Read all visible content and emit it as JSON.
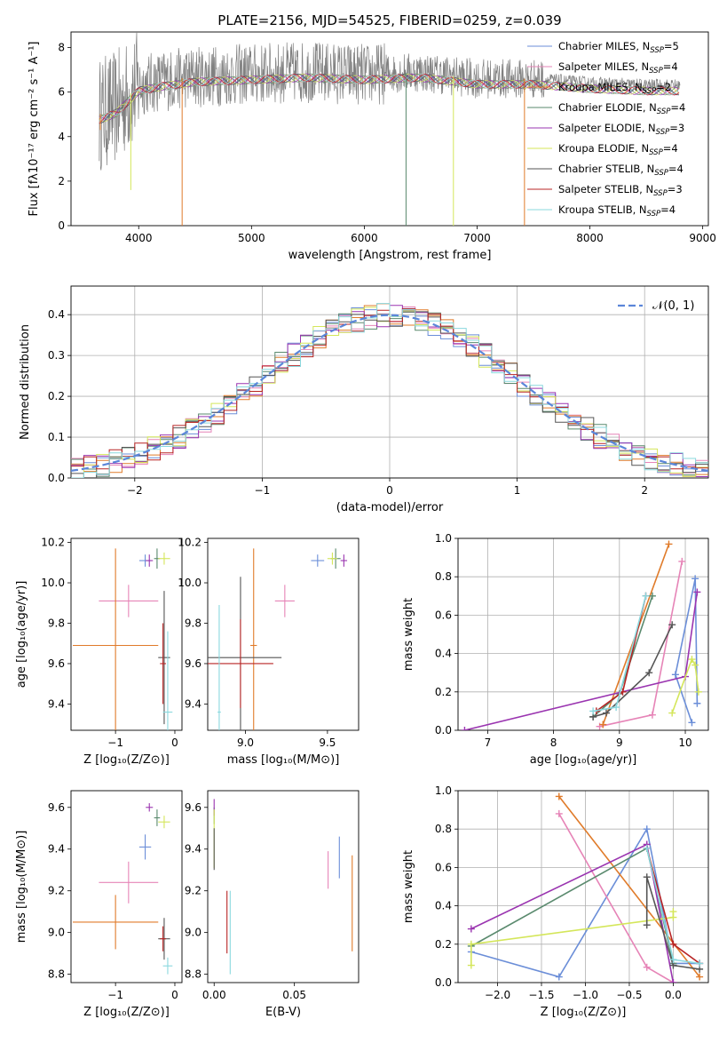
{
  "colors": {
    "chabrier_miles": "#6b8ed8",
    "salpeter_miles": "#e684b7",
    "kroupa_miles": "#e07b2a",
    "chabrier_elodie": "#5a8a6e",
    "salpeter_elodie": "#9a34b0",
    "kroupa_elodie": "#d4e65a",
    "chabrier_stelib": "#555555",
    "salpeter_stelib": "#b82424",
    "kroupa_stelib": "#8ad8de",
    "data": "#808080",
    "gaussian": "#5b86d9",
    "grid": "#b0b0b0"
  },
  "chart_data": [
    {
      "id": "spectrum",
      "type": "line",
      "title": "PLATE=2156, MJD=54525, FIBERID=0259, z=0.039",
      "xlabel": "wavelength [Angstrom, rest frame]",
      "ylabel": "Flux [fλ10⁻¹⁷ erg cm⁻² s⁻¹ A⁻¹]",
      "xlim": [
        3400,
        9050
      ],
      "ylim": [
        0,
        8.7
      ],
      "xticks": [
        "4000",
        "5000",
        "6000",
        "7000",
        "8000",
        "9000"
      ],
      "yticks": [
        "0",
        "2",
        "4",
        "6",
        "8"
      ],
      "grid": false,
      "legend_position": "top-right",
      "legend": [
        {
          "label": "Chabrier MILES, N",
          "sub": "SSP",
          "tail": "=5",
          "key": "chabrier_miles"
        },
        {
          "label": "Salpeter MILES, N",
          "sub": "SSP",
          "tail": "=4",
          "key": "salpeter_miles"
        },
        {
          "label": "Kroupa MILES, N",
          "sub": "SSP",
          "tail": "=2",
          "key": "kroupa_miles"
        },
        {
          "label": "Chabrier ELODIE, N",
          "sub": "SSP",
          "tail": "=4",
          "key": "chabrier_elodie"
        },
        {
          "label": "Salpeter ELODIE, N",
          "sub": "SSP",
          "tail": "=3",
          "key": "salpeter_elodie"
        },
        {
          "label": "Kroupa ELODIE, N",
          "sub": "SSP",
          "tail": "=4",
          "key": "kroupa_elodie"
        },
        {
          "label": "Chabrier STELIB, N",
          "sub": "SSP",
          "tail": "=4",
          "key": "chabrier_stelib"
        },
        {
          "label": "Salpeter STELIB, N",
          "sub": "SSP",
          "tail": "=3",
          "key": "salpeter_stelib"
        },
        {
          "label": "Kroupa STELIB, N",
          "sub": "SSP",
          "tail": "=4",
          "key": "kroupa_stelib"
        }
      ],
      "continuum": [
        [
          3650,
          5.0
        ],
        [
          3800,
          5.3
        ],
        [
          4000,
          6.3
        ],
        [
          4200,
          6.5
        ],
        [
          4500,
          6.7
        ],
        [
          5000,
          6.8
        ],
        [
          5500,
          6.9
        ],
        [
          6000,
          6.8
        ],
        [
          6500,
          6.9
        ],
        [
          7000,
          6.6
        ],
        [
          7500,
          6.6
        ],
        [
          8000,
          6.4
        ],
        [
          8500,
          6.3
        ],
        [
          8800,
          6.3
        ]
      ],
      "dips": [
        {
          "x": 3660,
          "y": 4.3,
          "key": "kroupa_miles"
        },
        {
          "x": 3930,
          "y": 1.6,
          "key": "kroupa_elodie"
        },
        {
          "x": 4385,
          "y": 0.0,
          "key": "kroupa_miles"
        },
        {
          "x": 6370,
          "y": 0.0,
          "key": "chabrier_elodie"
        },
        {
          "x": 6790,
          "y": 0.0,
          "key": "kroupa_elodie"
        },
        {
          "x": 7420,
          "y": 0.0,
          "key": "kroupa_miles"
        }
      ]
    },
    {
      "id": "residuals",
      "type": "line",
      "xlabel": "(data-model)/error",
      "ylabel": "Normed distribution",
      "xlim": [
        -2.5,
        2.5
      ],
      "ylim": [
        0,
        0.47
      ],
      "xticks": [
        "−2",
        "−1",
        "0",
        "1",
        "2"
      ],
      "yticks": [
        "0.0",
        "0.1",
        "0.2",
        "0.3",
        "0.4"
      ],
      "grid": true,
      "legend_position": "top-right",
      "legend": [
        {
          "label": "𝒩(0, 1)",
          "key": "gaussian"
        }
      ],
      "bin_width": 0.1
    },
    {
      "id": "age_vs_Z",
      "type": "scatter",
      "xlabel": "Z [log₁₀(Z/Z⊙)]",
      "ylabel": "age  [log₁₀(age/yr)]",
      "xlim": [
        -1.75,
        0.12
      ],
      "ylim": [
        9.27,
        10.22
      ],
      "xticks": [
        "−1",
        "0"
      ],
      "yticks": [
        "9.4",
        "9.6",
        "9.8",
        "10.0",
        "10.2"
      ],
      "points": [
        {
          "key": "chabrier_miles",
          "x": -0.5,
          "xe": 0.1,
          "y": 10.11,
          "ye": 0.03
        },
        {
          "key": "salpeter_miles",
          "x": -0.78,
          "xe": 0.5,
          "y": 9.91,
          "ye": 0.08
        },
        {
          "key": "kroupa_miles",
          "x": -1.0,
          "xe": 0.72,
          "y": 9.69,
          "ye": 0.48
        },
        {
          "key": "chabrier_elodie",
          "x": -0.3,
          "xe": 0.05,
          "y": 10.12,
          "ye": 0.05
        },
        {
          "key": "salpeter_elodie",
          "x": -0.43,
          "xe": 0.06,
          "y": 10.11,
          "ye": 0.03
        },
        {
          "key": "kroupa_elodie",
          "x": -0.18,
          "xe": 0.1,
          "y": 10.12,
          "ye": 0.03
        },
        {
          "key": "chabrier_stelib",
          "x": -0.18,
          "xe": 0.1,
          "y": 9.63,
          "ye": 0.33
        },
        {
          "key": "salpeter_stelib",
          "x": -0.2,
          "xe": 0.05,
          "y": 9.6,
          "ye": 0.2
        },
        {
          "key": "kroupa_stelib",
          "x": -0.12,
          "xe": 0.08,
          "y": 9.36,
          "ye": 0.4
        }
      ]
    },
    {
      "id": "age_vs_mass",
      "type": "scatter",
      "xlabel": "mass [log₁₀(M/M⊙)]",
      "ylabel": "",
      "xlim": [
        8.77,
        9.69
      ],
      "ylim": [
        9.27,
        10.22
      ],
      "xticks": [
        "9.0",
        "9.5"
      ],
      "yticks": [
        "9.4",
        "9.6",
        "9.8",
        "10.0",
        "10.2"
      ],
      "points": [
        {
          "key": "chabrier_miles",
          "x": 9.44,
          "xe": 0.04,
          "y": 10.11,
          "ye": 0.03
        },
        {
          "key": "salpeter_miles",
          "x": 9.24,
          "xe": 0.06,
          "y": 9.91,
          "ye": 0.08
        },
        {
          "key": "kroupa_miles",
          "x": 9.05,
          "xe": 0.02,
          "y": 9.69,
          "ye": 0.48
        },
        {
          "key": "chabrier_elodie",
          "x": 9.55,
          "xe": 0.03,
          "y": 10.12,
          "ye": 0.05
        },
        {
          "key": "salpeter_elodie",
          "x": 9.6,
          "xe": 0.02,
          "y": 10.11,
          "ye": 0.03
        },
        {
          "key": "kroupa_elodie",
          "x": 9.53,
          "xe": 0.03,
          "y": 10.12,
          "ye": 0.03
        },
        {
          "key": "chabrier_stelib",
          "x": 8.97,
          "xe": 0.25,
          "y": 9.63,
          "ye": 0.4
        },
        {
          "key": "salpeter_stelib",
          "x": 8.97,
          "xe": 0.2,
          "y": 9.6,
          "ye": 0.22
        },
        {
          "key": "kroupa_stelib",
          "x": 8.84,
          "xe": 0.01,
          "y": 9.36,
          "ye": 0.53
        }
      ]
    },
    {
      "id": "weight_vs_age",
      "type": "line",
      "xlabel": "age  [log₁₀(age/yr)]",
      "ylabel": "mass weight",
      "xlim": [
        6.55,
        10.35
      ],
      "ylim": [
        0,
        1.0
      ],
      "xticks": [
        "7",
        "8",
        "9",
        "10"
      ],
      "yticks": [
        "0.0",
        "0.2",
        "0.4",
        "0.6",
        "0.8",
        "1.0"
      ],
      "grid": true,
      "series": [
        {
          "key": "chabrier_miles",
          "x": [
            10.1,
            9.85,
            10.15,
            10.18
          ],
          "y": [
            0.04,
            0.29,
            0.79,
            0.14
          ]
        },
        {
          "key": "salpeter_miles",
          "x": [
            8.7,
            9.5,
            9.95
          ],
          "y": [
            0.02,
            0.08,
            0.88
          ]
        },
        {
          "key": "kroupa_miles",
          "x": [
            8.75,
            9.75
          ],
          "y": [
            0.03,
            0.97
          ]
        },
        {
          "key": "chabrier_elodie",
          "x": [
            8.6,
            9.0,
            9.5
          ],
          "y": [
            0.07,
            0.19,
            0.7
          ]
        },
        {
          "key": "salpeter_elodie",
          "x": [
            6.65,
            10.0,
            10.18
          ],
          "y": [
            0.0,
            0.28,
            0.72
          ]
        },
        {
          "key": "kroupa_elodie",
          "x": [
            9.8,
            10.1,
            10.15,
            10.2
          ],
          "y": [
            0.09,
            0.37,
            0.34,
            0.2
          ]
        },
        {
          "key": "chabrier_stelib",
          "x": [
            8.6,
            8.8,
            9.45,
            9.8
          ],
          "y": [
            0.07,
            0.09,
            0.3,
            0.55
          ]
        },
        {
          "key": "salpeter_stelib",
          "x": [
            8.65,
            9.05,
            9.4
          ],
          "y": [
            0.1,
            0.2,
            0.7
          ]
        },
        {
          "key": "kroupa_stelib",
          "x": [
            8.6,
            8.95,
            9.4
          ],
          "y": [
            0.1,
            0.12,
            0.7
          ]
        }
      ]
    },
    {
      "id": "mass_vs_Z",
      "type": "scatter",
      "xlabel": "Z [log₁₀(Z/Z⊙)]",
      "ylabel": "mass [log₁₀(M/M⊙)]",
      "xlim": [
        -1.75,
        0.12
      ],
      "ylim": [
        8.76,
        9.68
      ],
      "xticks": [
        "−1",
        "0"
      ],
      "yticks": [
        "8.8",
        "9.0",
        "9.2",
        "9.4",
        "9.6"
      ],
      "points": [
        {
          "key": "chabrier_miles",
          "x": -0.5,
          "xe": 0.1,
          "y": 9.41,
          "ye": 0.06
        },
        {
          "key": "salpeter_miles",
          "x": -0.78,
          "xe": 0.5,
          "y": 9.24,
          "ye": 0.1
        },
        {
          "key": "kroupa_miles",
          "x": -1.0,
          "xe": 0.72,
          "y": 9.05,
          "ye": 0.13
        },
        {
          "key": "chabrier_elodie",
          "x": -0.3,
          "xe": 0.05,
          "y": 9.55,
          "ye": 0.04
        },
        {
          "key": "salpeter_elodie",
          "x": -0.43,
          "xe": 0.06,
          "y": 9.6,
          "ye": 0.02
        },
        {
          "key": "kroupa_elodie",
          "x": -0.18,
          "xe": 0.1,
          "y": 9.53,
          "ye": 0.03
        },
        {
          "key": "chabrier_stelib",
          "x": -0.18,
          "xe": 0.1,
          "y": 8.97,
          "ye": 0.1
        },
        {
          "key": "salpeter_stelib",
          "x": -0.2,
          "xe": 0.05,
          "y": 8.97,
          "ye": 0.06
        },
        {
          "key": "kroupa_stelib",
          "x": -0.12,
          "xe": 0.08,
          "y": 8.84,
          "ye": 0.04
        }
      ]
    },
    {
      "id": "mass_vs_ebv",
      "type": "scatter",
      "xlabel": "E(B-V)",
      "ylabel": "",
      "xlim": [
        -0.004,
        0.09
      ],
      "ylim": [
        8.76,
        9.68
      ],
      "xticks": [
        "0.00",
        "0.05"
      ],
      "yticks": [
        "8.8",
        "9.0",
        "9.2",
        "9.4",
        "9.6"
      ],
      "points": [
        {
          "key": "chabrier_miles",
          "x": 0.078,
          "xe": 0,
          "y": 9.36,
          "ye": 0.1
        },
        {
          "key": "salpeter_miles",
          "x": 0.071,
          "xe": 0,
          "y": 9.3,
          "ye": 0.09
        },
        {
          "key": "kroupa_miles",
          "x": 0.086,
          "xe": 0,
          "y": 9.14,
          "ye": 0.23
        },
        {
          "key": "chabrier_elodie",
          "x": 0.0,
          "xe": 0,
          "y": 9.56,
          "ye": 0.04
        },
        {
          "key": "salpeter_elodie",
          "x": 0.0,
          "xe": 0,
          "y": 9.6,
          "ye": 0.04
        },
        {
          "key": "kroupa_elodie",
          "x": 0.0,
          "xe": 0,
          "y": 9.45,
          "ye": 0.14
        },
        {
          "key": "chabrier_stelib",
          "x": 0.0,
          "xe": 0,
          "y": 9.4,
          "ye": 0.1
        },
        {
          "key": "salpeter_stelib",
          "x": 0.008,
          "xe": 0,
          "y": 9.05,
          "ye": 0.15
        },
        {
          "key": "kroupa_stelib",
          "x": 0.01,
          "xe": 0,
          "y": 9.0,
          "ye": 0.2
        }
      ]
    },
    {
      "id": "weight_vs_Z",
      "type": "line",
      "xlabel": "Z [log₁₀(Z/Z⊙)]",
      "ylabel": "mass weight",
      "xlim": [
        -2.45,
        0.4
      ],
      "ylim": [
        0,
        1.0
      ],
      "xticks": [
        "−2.0",
        "−1.5",
        "−1.0",
        "−0.5",
        "0.0"
      ],
      "yticks": [
        "0.0",
        "0.2",
        "0.4",
        "0.6",
        "0.8",
        "1.0"
      ],
      "grid": true,
      "series": [
        {
          "key": "chabrier_miles",
          "x": [
            -2.3,
            -1.3,
            -0.3,
            0.0,
            0.3
          ],
          "y": [
            0.16,
            0.03,
            0.8,
            0.1,
            0.1
          ]
        },
        {
          "key": "salpeter_miles",
          "x": [
            -1.3,
            -0.3,
            0.0
          ],
          "y": [
            0.88,
            0.08,
            0.0
          ]
        },
        {
          "key": "kroupa_miles",
          "x": [
            -1.3,
            0.3
          ],
          "y": [
            0.97,
            0.03
          ]
        },
        {
          "key": "chabrier_elodie",
          "x": [
            -2.3,
            -0.3,
            0.0
          ],
          "y": [
            0.19,
            0.7,
            0.1
          ]
        },
        {
          "key": "salpeter_elodie",
          "x": [
            -2.3,
            -0.3,
            0.0
          ],
          "y": [
            0.28,
            0.72,
            0.0
          ]
        },
        {
          "key": "kroupa_elodie",
          "x": [
            -2.3,
            -2.3,
            0.0,
            0.0
          ],
          "y": [
            0.09,
            0.2,
            0.34,
            0.37
          ]
        },
        {
          "key": "chabrier_stelib",
          "x": [
            -0.3,
            -0.3,
            0.0,
            0.3
          ],
          "y": [
            0.3,
            0.55,
            0.09,
            0.07
          ]
        },
        {
          "key": "salpeter_stelib",
          "x": [
            -0.3,
            0.0,
            0.3
          ],
          "y": [
            0.7,
            0.2,
            0.1
          ]
        },
        {
          "key": "kroupa_stelib",
          "x": [
            -0.3,
            0.0,
            0.3
          ],
          "y": [
            0.7,
            0.12,
            0.1
          ]
        }
      ]
    }
  ]
}
